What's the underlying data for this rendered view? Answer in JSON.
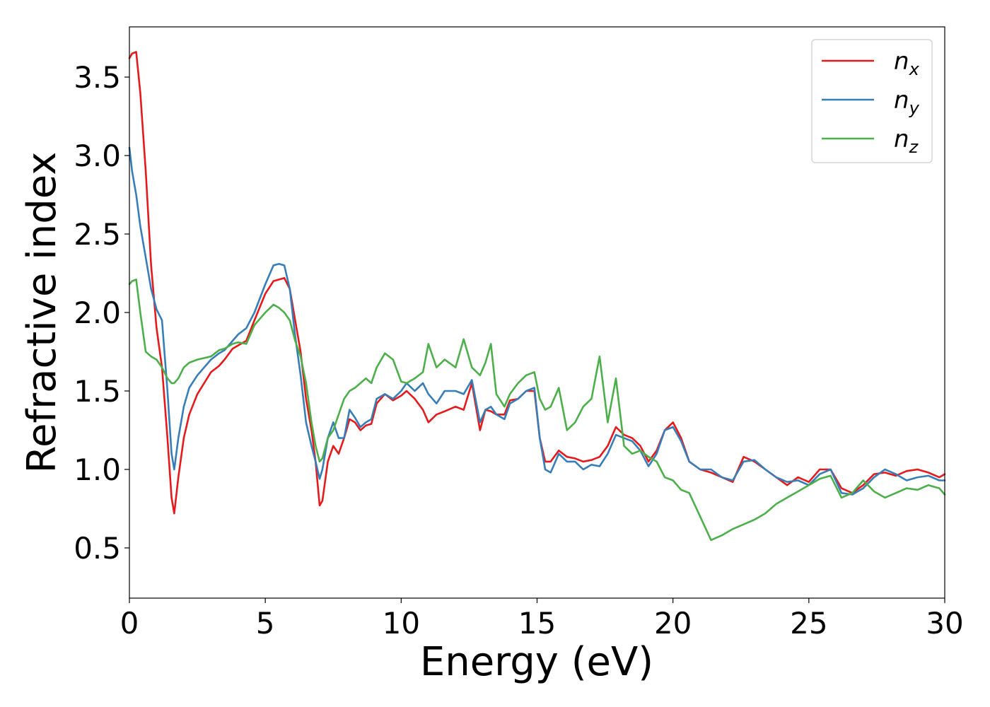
{
  "chart_data": {
    "type": "line",
    "xlabel": "Energy (eV)",
    "ylabel": "Refractive index",
    "xlim": [
      0,
      30
    ],
    "ylim": [
      0.18,
      3.82
    ],
    "xticks": [
      "0",
      "5",
      "10",
      "15",
      "20",
      "25",
      "30"
    ],
    "yticks": [
      "0.5",
      "1.0",
      "1.5",
      "2.0",
      "2.5",
      "3.0",
      "3.5"
    ],
    "xtick_values": [
      0,
      5,
      10,
      15,
      20,
      25,
      30
    ],
    "ytick_values": [
      0.5,
      1.0,
      1.5,
      2.0,
      2.5,
      3.0,
      3.5
    ],
    "grid": false,
    "legend_position": "top-right",
    "series": [
      {
        "name": "n",
        "subscript": "x",
        "color": "#e41a1c",
        "x": [
          0,
          0.1,
          0.25,
          0.4,
          0.6,
          0.8,
          1.0,
          1.2,
          1.4,
          1.55,
          1.65,
          1.8,
          2.0,
          2.2,
          2.5,
          3.0,
          3.3,
          3.5,
          3.8,
          4.0,
          4.3,
          4.6,
          5.0,
          5.3,
          5.5,
          5.7,
          5.9,
          6.1,
          6.3,
          6.5,
          6.7,
          6.85,
          7.0,
          7.1,
          7.3,
          7.5,
          7.7,
          7.9,
          8.1,
          8.3,
          8.5,
          8.7,
          8.9,
          9.1,
          9.4,
          9.7,
          10.0,
          10.2,
          10.5,
          10.8,
          11.0,
          11.3,
          11.6,
          12.0,
          12.3,
          12.6,
          12.9,
          13.1,
          13.3,
          13.5,
          13.8,
          14.0,
          14.3,
          14.6,
          14.9,
          15.1,
          15.3,
          15.5,
          15.8,
          16.1,
          16.4,
          16.7,
          17.0,
          17.3,
          17.6,
          17.9,
          18.2,
          18.5,
          18.8,
          19.1,
          19.4,
          19.7,
          20.0,
          20.3,
          20.6,
          21.0,
          21.4,
          21.8,
          22.2,
          22.6,
          23.0,
          23.4,
          23.8,
          24.2,
          24.6,
          25.0,
          25.4,
          25.8,
          26.2,
          26.6,
          27.0,
          27.4,
          27.8,
          28.2,
          28.6,
          29.0,
          29.4,
          29.8,
          30.0
        ],
        "y": [
          3.62,
          3.65,
          3.66,
          3.4,
          2.9,
          2.3,
          1.9,
          1.65,
          1.2,
          0.82,
          0.72,
          0.95,
          1.2,
          1.35,
          1.48,
          1.62,
          1.66,
          1.7,
          1.77,
          1.79,
          1.82,
          1.95,
          2.12,
          2.2,
          2.21,
          2.22,
          2.15,
          1.95,
          1.75,
          1.45,
          1.25,
          1.05,
          0.77,
          0.8,
          1.05,
          1.15,
          1.1,
          1.2,
          1.32,
          1.3,
          1.25,
          1.28,
          1.29,
          1.42,
          1.48,
          1.44,
          1.47,
          1.5,
          1.45,
          1.38,
          1.3,
          1.35,
          1.37,
          1.4,
          1.38,
          1.55,
          1.25,
          1.38,
          1.37,
          1.35,
          1.35,
          1.44,
          1.45,
          1.5,
          1.5,
          1.2,
          1.05,
          1.05,
          1.12,
          1.08,
          1.07,
          1.05,
          1.06,
          1.08,
          1.15,
          1.27,
          1.22,
          1.2,
          1.15,
          1.05,
          1.12,
          1.25,
          1.3,
          1.2,
          1.05,
          1.0,
          0.98,
          0.95,
          0.92,
          1.08,
          1.05,
          1.0,
          0.95,
          0.9,
          0.95,
          0.92,
          1.0,
          1.0,
          0.88,
          0.85,
          0.9,
          0.97,
          0.98,
          0.96,
          0.99,
          1.0,
          0.98,
          0.95,
          0.97
        ]
      },
      {
        "name": "n",
        "subscript": "y",
        "color": "#377eb8",
        "x": [
          0,
          0.1,
          0.25,
          0.4,
          0.6,
          0.8,
          1.0,
          1.2,
          1.4,
          1.55,
          1.65,
          1.8,
          2.0,
          2.2,
          2.5,
          3.0,
          3.3,
          3.5,
          3.8,
          4.0,
          4.3,
          4.6,
          5.0,
          5.3,
          5.5,
          5.7,
          5.9,
          6.1,
          6.3,
          6.5,
          6.7,
          6.85,
          7.0,
          7.1,
          7.3,
          7.5,
          7.7,
          7.9,
          8.1,
          8.3,
          8.5,
          8.7,
          8.9,
          9.1,
          9.4,
          9.7,
          10.0,
          10.2,
          10.5,
          10.8,
          11.0,
          11.3,
          11.6,
          12.0,
          12.3,
          12.6,
          12.9,
          13.1,
          13.3,
          13.5,
          13.8,
          14.0,
          14.3,
          14.6,
          14.9,
          15.1,
          15.3,
          15.5,
          15.8,
          16.1,
          16.4,
          16.7,
          17.0,
          17.3,
          17.6,
          17.9,
          18.2,
          18.5,
          18.8,
          19.1,
          19.4,
          19.7,
          20.0,
          20.3,
          20.6,
          21.0,
          21.4,
          21.8,
          22.2,
          22.6,
          23.0,
          23.4,
          23.8,
          24.2,
          24.6,
          25.0,
          25.4,
          25.8,
          26.2,
          26.6,
          27.0,
          27.4,
          27.8,
          28.2,
          28.6,
          29.0,
          29.4,
          29.8,
          30.0
        ],
        "y": [
          3.05,
          2.9,
          2.75,
          2.55,
          2.35,
          2.15,
          2.02,
          1.95,
          1.5,
          1.1,
          1.0,
          1.2,
          1.4,
          1.52,
          1.6,
          1.7,
          1.74,
          1.76,
          1.82,
          1.86,
          1.9,
          2.0,
          2.18,
          2.3,
          2.31,
          2.3,
          2.15,
          1.85,
          1.6,
          1.3,
          1.15,
          1.05,
          0.94,
          1.0,
          1.2,
          1.3,
          1.2,
          1.2,
          1.38,
          1.33,
          1.27,
          1.3,
          1.32,
          1.45,
          1.48,
          1.45,
          1.5,
          1.55,
          1.5,
          1.55,
          1.48,
          1.42,
          1.5,
          1.5,
          1.48,
          1.57,
          1.3,
          1.38,
          1.4,
          1.35,
          1.32,
          1.42,
          1.45,
          1.5,
          1.52,
          1.2,
          1.0,
          0.98,
          1.1,
          1.05,
          1.05,
          1.0,
          1.03,
          1.02,
          1.1,
          1.22,
          1.2,
          1.18,
          1.12,
          1.02,
          1.1,
          1.25,
          1.27,
          1.18,
          1.05,
          1.0,
          1.0,
          0.95,
          0.93,
          1.05,
          1.06,
          1.0,
          0.95,
          0.92,
          0.93,
          0.9,
          0.97,
          1.0,
          0.85,
          0.84,
          0.88,
          0.95,
          1.0,
          0.97,
          0.93,
          0.95,
          0.96,
          0.93,
          0.93
        ]
      },
      {
        "name": "n",
        "subscript": "z",
        "color": "#4daf4a",
        "x": [
          0,
          0.1,
          0.25,
          0.4,
          0.6,
          0.8,
          1.0,
          1.2,
          1.4,
          1.55,
          1.65,
          1.8,
          2.0,
          2.2,
          2.5,
          3.0,
          3.3,
          3.5,
          3.8,
          4.0,
          4.3,
          4.6,
          5.0,
          5.3,
          5.5,
          5.7,
          5.9,
          6.1,
          6.3,
          6.5,
          6.7,
          6.85,
          7.0,
          7.1,
          7.3,
          7.5,
          7.7,
          7.9,
          8.1,
          8.3,
          8.5,
          8.7,
          8.9,
          9.1,
          9.4,
          9.7,
          10.0,
          10.2,
          10.5,
          10.8,
          11.0,
          11.3,
          11.6,
          12.0,
          12.3,
          12.6,
          12.9,
          13.1,
          13.3,
          13.5,
          13.8,
          14.0,
          14.3,
          14.6,
          14.9,
          15.1,
          15.3,
          15.5,
          15.8,
          16.1,
          16.4,
          16.7,
          17.0,
          17.3,
          17.6,
          17.9,
          18.2,
          18.5,
          18.8,
          19.1,
          19.4,
          19.7,
          20.0,
          20.3,
          20.6,
          21.0,
          21.4,
          21.8,
          22.2,
          22.6,
          23.0,
          23.4,
          23.8,
          24.2,
          24.6,
          25.0,
          25.4,
          25.8,
          26.2,
          26.6,
          27.0,
          27.4,
          27.8,
          28.2,
          28.6,
          29.0,
          29.4,
          29.8,
          30.0
        ],
        "y": [
          2.18,
          2.2,
          2.21,
          2.0,
          1.75,
          1.72,
          1.7,
          1.65,
          1.58,
          1.55,
          1.55,
          1.58,
          1.65,
          1.68,
          1.7,
          1.72,
          1.76,
          1.77,
          1.8,
          1.81,
          1.8,
          1.92,
          2.0,
          2.05,
          2.03,
          2.0,
          1.95,
          1.82,
          1.72,
          1.55,
          1.3,
          1.15,
          1.05,
          1.07,
          1.2,
          1.25,
          1.35,
          1.45,
          1.5,
          1.52,
          1.55,
          1.58,
          1.55,
          1.65,
          1.74,
          1.7,
          1.56,
          1.55,
          1.58,
          1.62,
          1.8,
          1.65,
          1.7,
          1.65,
          1.83,
          1.65,
          1.6,
          1.68,
          1.8,
          1.48,
          1.4,
          1.48,
          1.55,
          1.6,
          1.62,
          1.45,
          1.38,
          1.4,
          1.52,
          1.25,
          1.3,
          1.4,
          1.45,
          1.72,
          1.3,
          1.58,
          1.15,
          1.1,
          1.12,
          1.08,
          1.05,
          0.95,
          0.93,
          0.87,
          0.85,
          0.7,
          0.55,
          0.58,
          0.62,
          0.65,
          0.68,
          0.72,
          0.78,
          0.82,
          0.86,
          0.9,
          0.94,
          0.96,
          0.82,
          0.85,
          0.93,
          0.86,
          0.82,
          0.85,
          0.88,
          0.87,
          0.9,
          0.88,
          0.84
        ]
      }
    ]
  }
}
